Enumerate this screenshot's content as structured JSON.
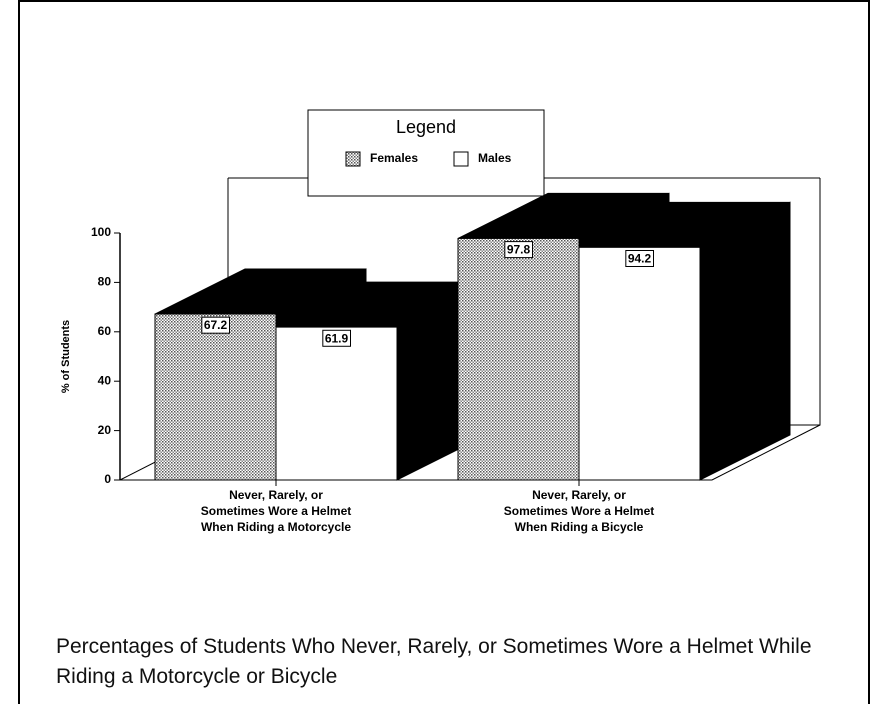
{
  "chart_data": {
    "type": "bar3d",
    "title": "Percentages of Students Who Never, Rarely, or Sometimes Wore a Helmet While Riding a Motorcycle or Bicycle",
    "ylabel": "% of Students",
    "legend_title": "Legend",
    "legend": "top",
    "categories": [
      [
        "Never, Rarely, or",
        "Sometimes Wore a Helmet",
        "When Riding a Motorcycle"
      ],
      [
        "Never, Rarely, or",
        "Sometimes Wore a Helmet",
        "When Riding a Bicycle"
      ]
    ],
    "series": [
      {
        "name": "Females",
        "color": "#b0b0b0",
        "values": [
          67.2,
          97.8
        ]
      },
      {
        "name": "Males",
        "color": "#ffffff",
        "values": [
          61.9,
          94.2
        ]
      }
    ],
    "ylim": [
      0,
      100
    ],
    "yticks": [
      0,
      20,
      40,
      60,
      80,
      100
    ]
  }
}
